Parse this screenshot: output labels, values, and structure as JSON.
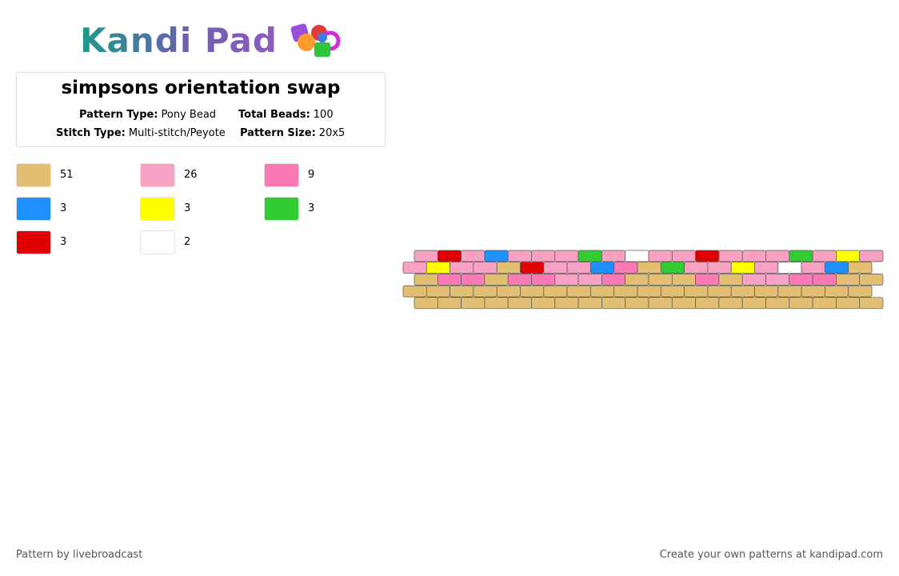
{
  "header": {
    "logo": "Kandi Pad",
    "title": "simpsons orientation swap",
    "info": [
      {
        "label": "Pattern Type:",
        "value": "Pony Bead"
      },
      {
        "label": "Total Beads:",
        "value": "100"
      },
      {
        "label": "Stitch Type:",
        "value": "Multi-stitch/Peyote"
      },
      {
        "label": "Pattern Size:",
        "value": "20x5"
      }
    ]
  },
  "legend": [
    {
      "color": "#e2bf72",
      "count": "51"
    },
    {
      "color": "#f7a1c3",
      "count": "26"
    },
    {
      "color": "#fb79b5",
      "count": "9"
    },
    {
      "color": "#1e90ff",
      "count": "3"
    },
    {
      "color": "#ffff00",
      "count": "3"
    },
    {
      "color": "#32cd32",
      "count": "3"
    },
    {
      "color": "#e00000",
      "count": "3"
    },
    {
      "color": "#ffffff",
      "count": "2"
    }
  ],
  "grid": [
    [
      "#f7a1c3",
      "#e00000",
      "#f7a1c3",
      "#1e90ff",
      "#f7a1c3",
      "#f7a1c3",
      "#f7a1c3",
      "#32cd32",
      "#f7a1c3",
      "#ffffff",
      "#f7a1c3",
      "#f7a1c3",
      "#e00000",
      "#f7a1c3",
      "#f7a1c3",
      "#f7a1c3",
      "#32cd32",
      "#f7a1c3",
      "#ffff00",
      "#f7a1c3"
    ],
    [
      "#f7a1c3",
      "#ffff00",
      "#f7a1c3",
      "#f7a1c3",
      "#e2bf72",
      "#e00000",
      "#f7a1c3",
      "#f7a1c3",
      "#1e90ff",
      "#fb79b5",
      "#e2bf72",
      "#32cd32",
      "#f7a1c3",
      "#f7a1c3",
      "#ffff00",
      "#f7a1c3",
      "#ffffff",
      "#f7a1c3",
      "#1e90ff",
      "#e2bf72"
    ],
    [
      "#e2bf72",
      "#fb79b5",
      "#fb79b5",
      "#e2bf72",
      "#fb79b5",
      "#fb79b5",
      "#f7a1c3",
      "#f7a1c3",
      "#fb79b5",
      "#e2bf72",
      "#e2bf72",
      "#e2bf72",
      "#fb79b5",
      "#e2bf72",
      "#f7a1c3",
      "#f7a1c3",
      "#fb79b5",
      "#fb79b5",
      "#e2bf72",
      "#e2bf72"
    ],
    [
      "#e2bf72",
      "#e2bf72",
      "#e2bf72",
      "#e2bf72",
      "#e2bf72",
      "#e2bf72",
      "#e2bf72",
      "#e2bf72",
      "#e2bf72",
      "#e2bf72",
      "#e2bf72",
      "#e2bf72",
      "#e2bf72",
      "#e2bf72",
      "#e2bf72",
      "#e2bf72",
      "#e2bf72",
      "#e2bf72",
      "#e2bf72",
      "#e2bf72"
    ],
    [
      "#e2bf72",
      "#e2bf72",
      "#e2bf72",
      "#e2bf72",
      "#e2bf72",
      "#e2bf72",
      "#e2bf72",
      "#e2bf72",
      "#e2bf72",
      "#e2bf72",
      "#e2bf72",
      "#e2bf72",
      "#e2bf72",
      "#e2bf72",
      "#e2bf72",
      "#e2bf72",
      "#e2bf72",
      "#e2bf72",
      "#e2bf72",
      "#e2bf72"
    ]
  ],
  "footer": {
    "left": "Pattern by livebroadcast",
    "right": "Create your own patterns at kandipad.com"
  }
}
